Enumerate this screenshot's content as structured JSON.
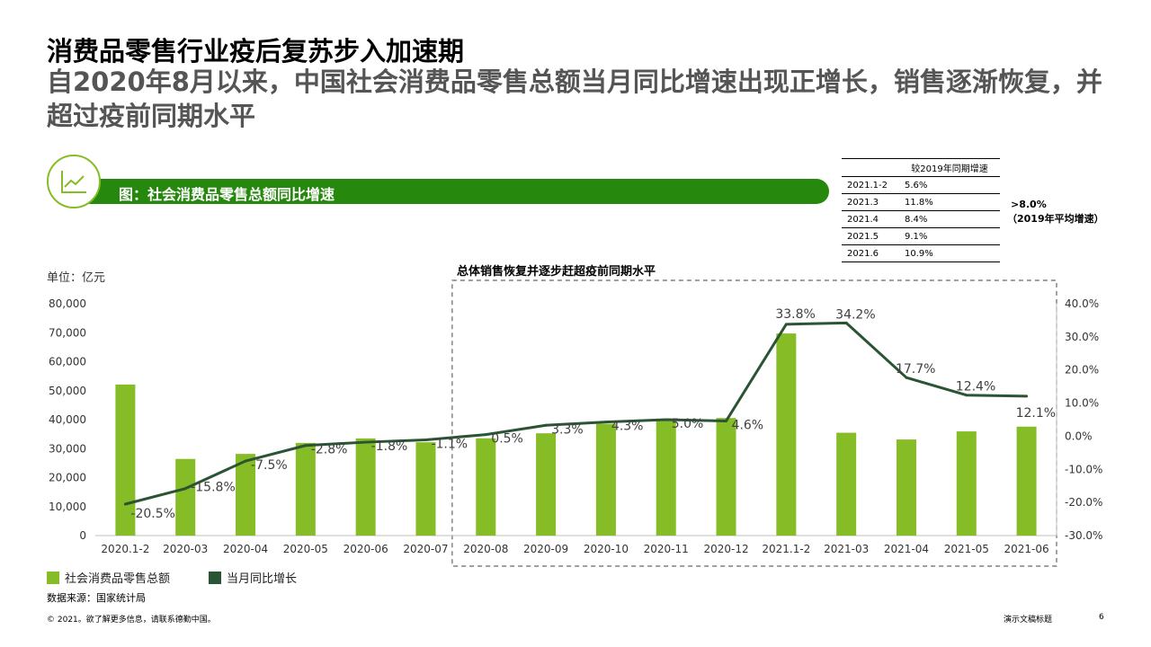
{
  "title": "消费品零售行业疫后复苏步入加速期",
  "subtitle": "自2020年8月以来，中国社会消费品零售总额当月同比增速出现正增长，销售逐渐恢复，并超过疫前同期水平",
  "banner_label": "图：社会消费品零售总额同比增速",
  "table": {
    "header": "较2019年同期增速",
    "rows": [
      {
        "period": "2021.1-2",
        "value": "5.6%"
      },
      {
        "period": "2021.3",
        "value": "11.8%"
      },
      {
        "period": "2021.4",
        "value": "8.4%"
      },
      {
        "period": "2021.5",
        "value": "9.1%"
      },
      {
        "period": "2021.6",
        "value": "10.9%"
      }
    ]
  },
  "note_line1": ">8.0%",
  "note_line2": "（2019年平均增速）",
  "dashed_box_title": "总体销售恢复并逐步赶超疫前同期水平",
  "unit_label": "单位：亿元",
  "legend": {
    "bar": "社会消费品零售总额",
    "line": "当月同比增长"
  },
  "source": "数据来源：国家统计局",
  "footer_left": "© 2021。欲了解更多信息，请联系德勤中国。",
  "footer_right": "演示文稿标题",
  "page_number": "6",
  "colors": {
    "bar": "#86bc25",
    "line": "#2a5434",
    "banner": "#26890d",
    "text_grey": "#555555"
  },
  "chart_data": {
    "type": "bar+line",
    "categories": [
      "2020.1-2",
      "2020-03",
      "2020-04",
      "2020-05",
      "2020-06",
      "2020-07",
      "2020-08",
      "2020-09",
      "2020-10",
      "2020-11",
      "2020-12",
      "2021.1-2",
      "2021-03",
      "2021-04",
      "2021-05",
      "2021-06"
    ],
    "series": [
      {
        "name": "社会消费品零售总额",
        "type": "bar",
        "axis": "left",
        "values": [
          52130,
          26450,
          28178,
          31973,
          33526,
          32203,
          33571,
          35295,
          38576,
          39514,
          40566,
          69737,
          35484,
          33153,
          35945,
          37586
        ]
      },
      {
        "name": "当月同比增长",
        "type": "line",
        "axis": "right",
        "values": [
          -20.5,
          -15.8,
          -7.5,
          -2.8,
          -1.8,
          -1.1,
          0.5,
          3.3,
          4.3,
          5.0,
          4.6,
          33.8,
          34.2,
          17.7,
          12.4,
          12.1
        ],
        "labels": [
          "-20.5%",
          "-15.8%",
          "-7.5%",
          "-2.8%",
          "-1.8%",
          "-1.1%",
          "0.5%",
          "3.3%",
          "4.3%",
          "5.0%",
          "4.6%",
          "33.8%",
          "34.2%",
          "17.7%",
          "12.4%",
          "12.1%"
        ]
      }
    ],
    "y_left": {
      "min": 0,
      "max": 80000,
      "step": 10000,
      "ticks": [
        "0",
        "10,000",
        "20,000",
        "30,000",
        "40,000",
        "50,000",
        "60,000",
        "70,000",
        "80,000"
      ]
    },
    "y_right": {
      "min": -30,
      "max": 40,
      "step": 10,
      "ticks": [
        "-30.0%",
        "-20.0%",
        "-10.0%",
        "0.0%",
        "10.0%",
        "20.0%",
        "30.0%",
        "40.0%"
      ]
    },
    "highlight_range": [
      "2020-08",
      "2021-06"
    ]
  }
}
